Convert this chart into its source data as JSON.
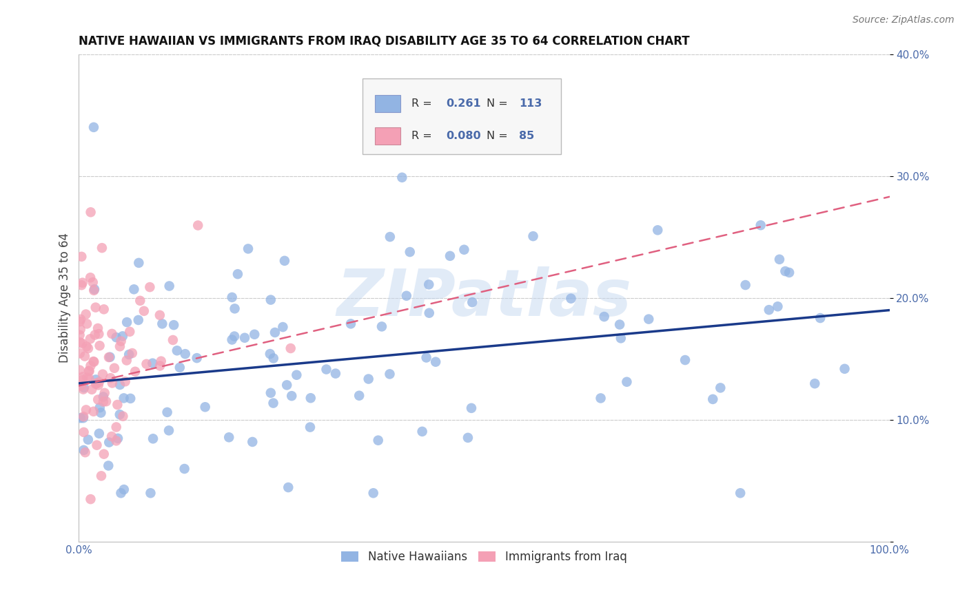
{
  "title": "NATIVE HAWAIIAN VS IMMIGRANTS FROM IRAQ DISABILITY AGE 35 TO 64 CORRELATION CHART",
  "source": "Source: ZipAtlas.com",
  "ylabel": "Disability Age 35 to 64",
  "xlim": [
    0,
    1.0
  ],
  "ylim": [
    0,
    0.4
  ],
  "group1_name": "Native Hawaiians",
  "group2_name": "Immigrants from Iraq",
  "group1_color": "#92b4e3",
  "group2_color": "#f4a0b5",
  "group1_line_color": "#1a3a8a",
  "group2_line_color": "#e06080",
  "group1_R": 0.261,
  "group1_N": 113,
  "group2_R": 0.08,
  "group2_N": 85,
  "background_color": "#ffffff",
  "grid_color": "#cccccc",
  "axis_color": "#4a6aaa",
  "title_color": "#111111",
  "source_color": "#777777",
  "watermark": "ZIPatlas",
  "watermark_color": "#c5d8f0",
  "watermark_alpha": 0.5
}
